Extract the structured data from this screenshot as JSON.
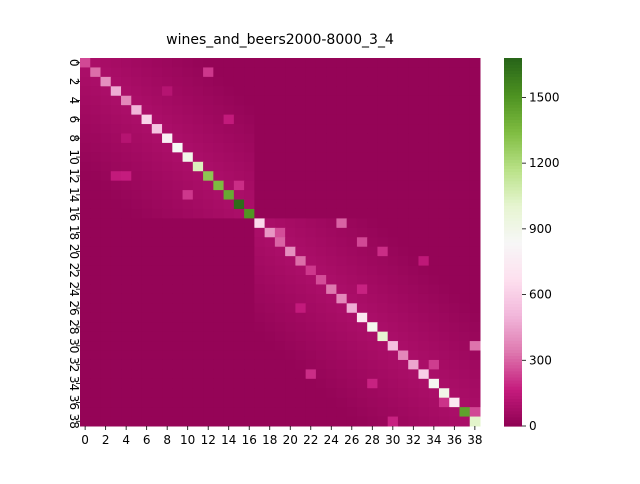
{
  "chart_data": {
    "type": "heatmap",
    "title": "wines_and_beers2000-8000_3_4",
    "xlabel": "",
    "ylabel": "",
    "n": 39,
    "x_tick_labels": [
      "0",
      "2",
      "4",
      "6",
      "8",
      "10",
      "12",
      "14",
      "16",
      "18",
      "20",
      "22",
      "24",
      "26",
      "28",
      "30",
      "32",
      "34",
      "36",
      "38"
    ],
    "y_tick_labels": [
      "0",
      "2",
      "4",
      "6",
      "8",
      "10",
      "12",
      "14",
      "16",
      "18",
      "20",
      "22",
      "24",
      "26",
      "28",
      "30",
      "32",
      "34",
      "36",
      "38"
    ],
    "diagonal": [
      250,
      320,
      400,
      480,
      380,
      500,
      620,
      560,
      780,
      850,
      900,
      1050,
      1300,
      1350,
      1420,
      1650,
      1500,
      640,
      420,
      300,
      400,
      320,
      220,
      260,
      340,
      380,
      480,
      720,
      880,
      1000,
      540,
      380,
      460,
      600,
      860,
      900,
      740,
      1450,
      1020
    ],
    "off_diagonal_highlights": [
      {
        "row": 1,
        "col": 12,
        "value": 220
      },
      {
        "row": 3,
        "col": 8,
        "value": 120
      },
      {
        "row": 6,
        "col": 14,
        "value": 160
      },
      {
        "row": 8,
        "col": 4,
        "value": 120
      },
      {
        "row": 12,
        "col": 3,
        "value": 160
      },
      {
        "row": 12,
        "col": 4,
        "value": 170
      },
      {
        "row": 13,
        "col": 15,
        "value": 200
      },
      {
        "row": 14,
        "col": 10,
        "value": 220
      },
      {
        "row": 17,
        "col": 25,
        "value": 300
      },
      {
        "row": 18,
        "col": 19,
        "value": 260
      },
      {
        "row": 19,
        "col": 27,
        "value": 250
      },
      {
        "row": 20,
        "col": 29,
        "value": 200
      },
      {
        "row": 21,
        "col": 33,
        "value": 150
      },
      {
        "row": 24,
        "col": 27,
        "value": 180
      },
      {
        "row": 26,
        "col": 21,
        "value": 160
      },
      {
        "row": 30,
        "col": 38,
        "value": 330
      },
      {
        "row": 32,
        "col": 34,
        "value": 230
      },
      {
        "row": 33,
        "col": 22,
        "value": 200
      },
      {
        "row": 34,
        "col": 28,
        "value": 180
      },
      {
        "row": 36,
        "col": 35,
        "value": 210
      },
      {
        "row": 37,
        "col": 38,
        "value": 250
      },
      {
        "row": 38,
        "col": 30,
        "value": 180
      }
    ],
    "background_value": 20,
    "colorbar": {
      "min": 0,
      "max": 1680,
      "ticks": [
        0,
        300,
        600,
        900,
        1200,
        1500
      ],
      "colormap": "PiYG"
    }
  }
}
